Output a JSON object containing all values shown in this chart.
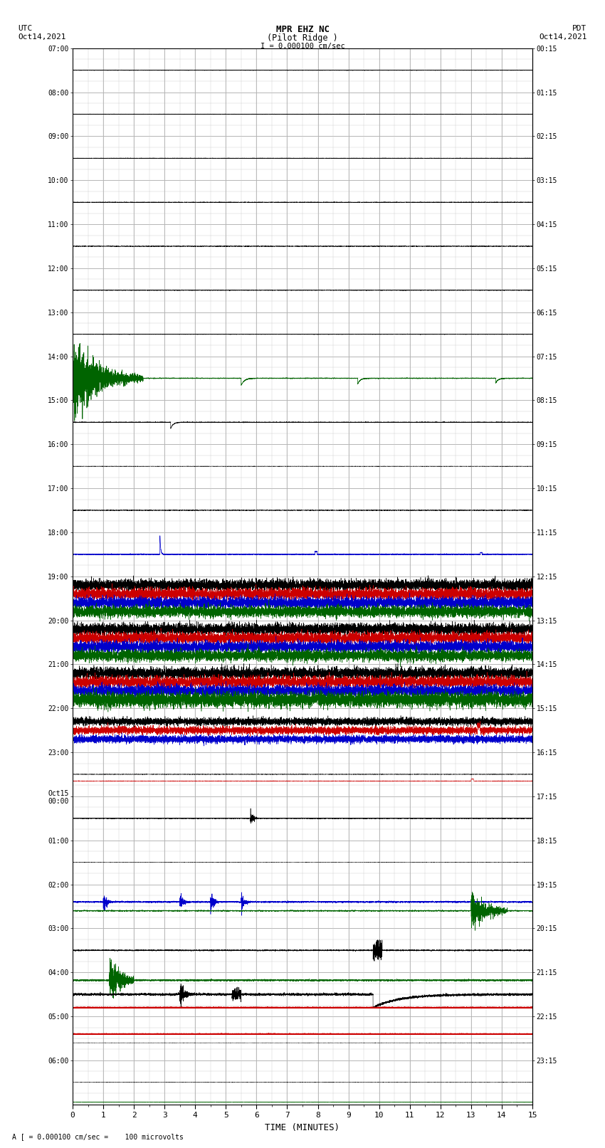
{
  "title_line1": "MPR EHZ NC",
  "title_line2": "(Pilot Ridge )",
  "title_scale": "I = 0.000100 cm/sec",
  "left_label_top": "UTC",
  "left_label_date": "Oct14,2021",
  "right_label_top": "PDT",
  "right_label_date": "Oct14,2021",
  "bottom_label": "TIME (MINUTES)",
  "bottom_note": "A [ = 0.000100 cm/sec =    100 microvolts",
  "utc_labels": [
    "07:00",
    "08:00",
    "09:00",
    "10:00",
    "11:00",
    "12:00",
    "13:00",
    "14:00",
    "15:00",
    "16:00",
    "17:00",
    "18:00",
    "19:00",
    "20:00",
    "21:00",
    "22:00",
    "23:00",
    "Oct15\n00:00",
    "01:00",
    "02:00",
    "03:00",
    "04:00",
    "05:00",
    "06:00"
  ],
  "pdt_labels": [
    "00:15",
    "01:15",
    "02:15",
    "03:15",
    "04:15",
    "05:15",
    "06:15",
    "07:15",
    "08:15",
    "09:15",
    "10:15",
    "11:15",
    "12:15",
    "13:15",
    "14:15",
    "15:15",
    "16:15",
    "17:15",
    "18:15",
    "19:15",
    "20:15",
    "21:15",
    "22:15",
    "23:15"
  ],
  "n_rows": 24,
  "x_min": 0,
  "x_max": 15,
  "background_color": "#ffffff",
  "grid_color": "#aaaaaa",
  "subgrid_color": "#cccccc"
}
